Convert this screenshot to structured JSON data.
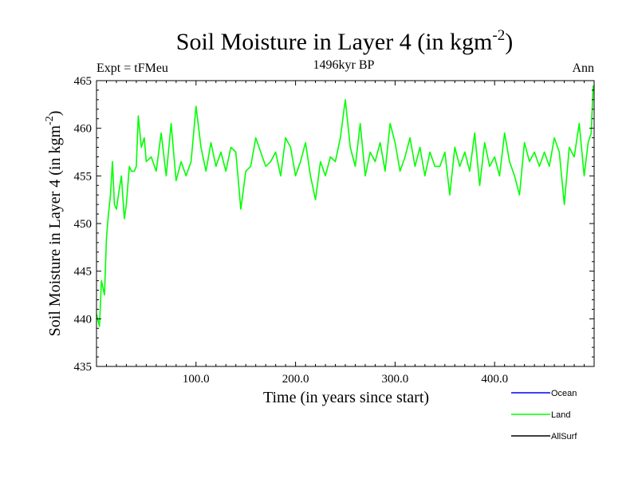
{
  "chart_data": {
    "type": "line",
    "title": "Soil Moisture in Layer 4 (in kgm",
    "title_sup": "-2",
    "title_close": ")",
    "subtitle": "1496kyr BP",
    "expt_label": "Expt = tFMeu",
    "season_label": "Ann",
    "xlabel": "Time (in years since start)",
    "ylabel": "Soil Moisture in Layer 4 (in kgm",
    "ylabel_sup": "-2",
    "ylabel_close": ")",
    "xlim": [
      0,
      500
    ],
    "ylim": [
      435,
      465
    ],
    "x_ticks": [
      100,
      200,
      300,
      400
    ],
    "x_tick_labels": [
      "100.0",
      "200.0",
      "300.0",
      "400.0"
    ],
    "y_ticks": [
      435,
      440,
      445,
      450,
      455,
      460,
      465
    ],
    "y_tick_labels": [
      "435",
      "440",
      "445",
      "450",
      "455",
      "460",
      "465"
    ],
    "series": [
      {
        "name": "Ocean",
        "color": "#0000ff",
        "values": []
      },
      {
        "name": "Land",
        "color": "#00ff00",
        "x": [
          0,
          3,
          5,
          8,
          10,
          12,
          14,
          16,
          18,
          20,
          22,
          25,
          28,
          30,
          33,
          35,
          38,
          40,
          42,
          45,
          48,
          50,
          55,
          60,
          65,
          70,
          75,
          80,
          85,
          90,
          95,
          100,
          105,
          110,
          115,
          120,
          125,
          130,
          135,
          140,
          145,
          150,
          155,
          160,
          165,
          170,
          175,
          180,
          185,
          190,
          195,
          200,
          205,
          210,
          215,
          220,
          225,
          230,
          235,
          240,
          245,
          250,
          255,
          260,
          265,
          270,
          275,
          280,
          285,
          290,
          295,
          300,
          305,
          310,
          315,
          320,
          325,
          330,
          335,
          340,
          345,
          350,
          355,
          360,
          365,
          370,
          375,
          380,
          385,
          390,
          395,
          400,
          405,
          410,
          415,
          420,
          425,
          430,
          435,
          440,
          445,
          450,
          455,
          460,
          465,
          470,
          475,
          480,
          485,
          490,
          494,
          497,
          499
        ],
        "values": [
          440.5,
          439.2,
          444.0,
          442.5,
          448.5,
          451.0,
          453.0,
          456.5,
          452.0,
          451.5,
          453.0,
          455.0,
          450.5,
          452.0,
          456.0,
          455.5,
          455.5,
          456.0,
          461.3,
          458.0,
          459.0,
          456.5,
          457.0,
          455.5,
          459.5,
          455.0,
          460.5,
          454.5,
          456.5,
          455.0,
          456.5,
          462.3,
          458.0,
          455.5,
          458.5,
          456.0,
          457.5,
          455.5,
          458.0,
          457.5,
          451.5,
          455.5,
          456.0,
          459.0,
          457.5,
          456.0,
          456.5,
          457.5,
          455.0,
          459.0,
          458.0,
          455.0,
          456.5,
          458.5,
          455.0,
          452.5,
          456.5,
          455.0,
          457.0,
          456.5,
          459.0,
          463.0,
          458.0,
          456.0,
          460.5,
          455.0,
          457.5,
          456.5,
          458.5,
          455.5,
          460.5,
          458.5,
          455.5,
          457.0,
          459.0,
          456.0,
          458.0,
          455.0,
          457.5,
          456.0,
          456.0,
          457.5,
          453.0,
          458.0,
          456.0,
          457.5,
          455.5,
          459.5,
          454.0,
          458.5,
          456.0,
          457.0,
          455.0,
          459.5,
          456.5,
          455.0,
          453.0,
          458.5,
          456.5,
          457.5,
          456.0,
          457.5,
          456.0,
          459.0,
          457.5,
          452.0,
          458.0,
          457.0,
          460.5,
          455.0,
          458.5,
          459.5,
          464.5
        ]
      },
      {
        "name": "AllSurf",
        "color": "#000000",
        "values": []
      }
    ],
    "legend_position": "bottom-right"
  }
}
